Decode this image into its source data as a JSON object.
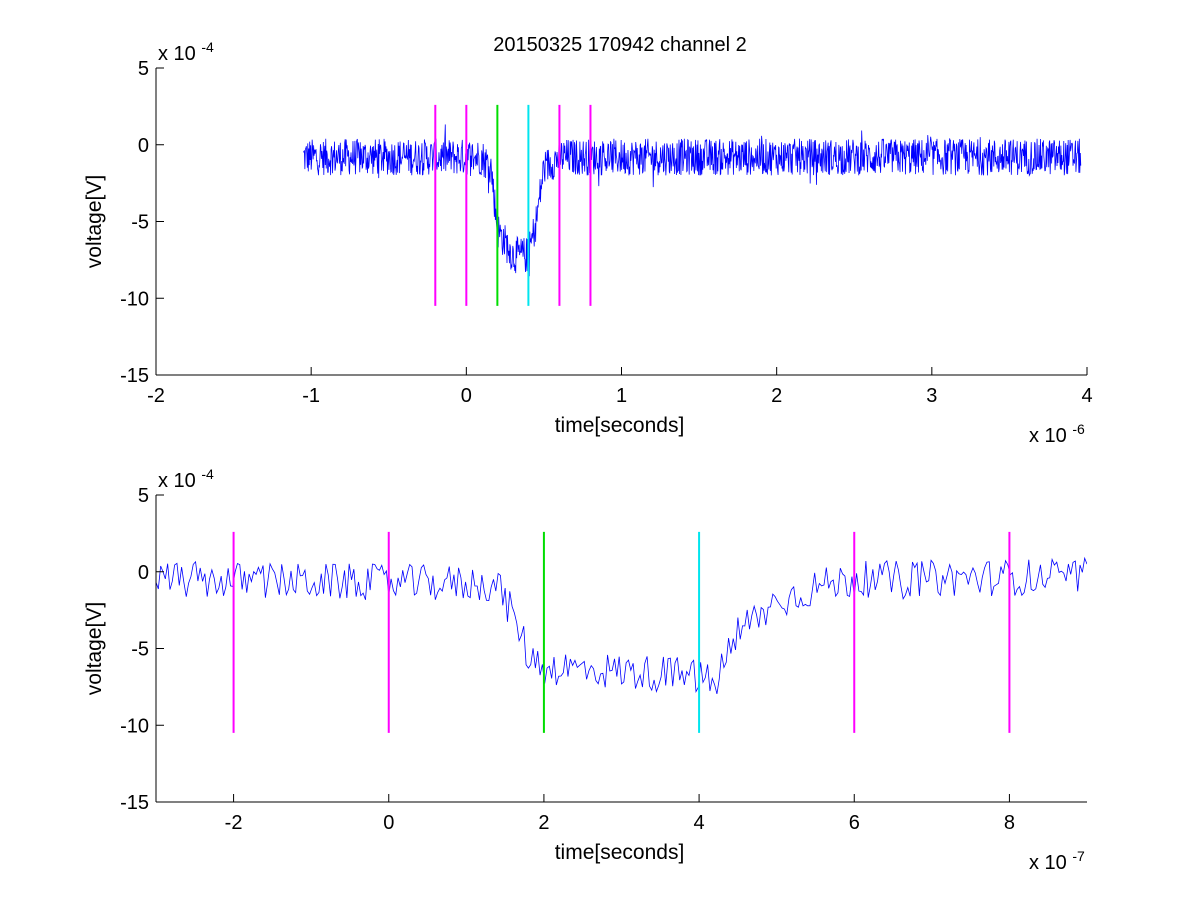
{
  "figure": {
    "title": "20150325 170942 channel 2"
  },
  "colors": {
    "signal": "#0000ff",
    "magenta_marker": "#ff00ff",
    "green_marker": "#00dd00",
    "cyan_marker": "#00e5ee",
    "axes": "#000000",
    "background": "#ffffff"
  },
  "chart_data": [
    {
      "type": "line",
      "title": "20150325 170942 channel 2",
      "xlabel": "time[seconds]",
      "ylabel": "voltage[V]",
      "x_exponent_label": "x 10",
      "x_exponent": "-6",
      "y_exponent_label": "x 10",
      "y_exponent": "-4",
      "xlim": [
        -2,
        4
      ],
      "ylim": [
        -15,
        5
      ],
      "x_unit_scale": "1e-6",
      "y_unit_scale": "1e-4",
      "xticks": [
        -2,
        -1,
        0,
        1,
        2,
        3,
        4
      ],
      "xtick_labels": [
        "-2",
        "-1",
        "0",
        "1",
        "2",
        "3",
        "4"
      ],
      "yticks": [
        5,
        0,
        -5,
        -10,
        -15
      ],
      "ytick_labels": [
        "5",
        "0",
        "-5",
        "-10",
        "-15"
      ],
      "grid": false,
      "legend": "none",
      "signal": {
        "x_start": -1.05,
        "x_end": 3.96,
        "description_points": [
          [
            -1.05,
            -0.8
          ],
          [
            -0.2,
            -0.8
          ],
          [
            0.1,
            -0.8
          ],
          [
            0.16,
            -1.5
          ],
          [
            0.2,
            -5.5
          ],
          [
            0.3,
            -7.2
          ],
          [
            0.4,
            -7.2
          ],
          [
            0.45,
            -5.0
          ],
          [
            0.5,
            -1.5
          ],
          [
            0.6,
            -0.8
          ],
          [
            3.96,
            -0.8
          ]
        ]
      },
      "markers": [
        {
          "x": -0.2,
          "color": "magenta",
          "y_range": [
            -10.5,
            2.6
          ]
        },
        {
          "x": 0.0,
          "color": "magenta",
          "y_range": [
            -10.5,
            2.6
          ]
        },
        {
          "x": 0.2,
          "color": "green",
          "y_range": [
            -10.5,
            2.6
          ]
        },
        {
          "x": 0.4,
          "color": "cyan",
          "y_range": [
            -10.5,
            2.6
          ]
        },
        {
          "x": 0.6,
          "color": "magenta",
          "y_range": [
            -10.5,
            2.6
          ]
        },
        {
          "x": 0.8,
          "color": "magenta",
          "y_range": [
            -10.5,
            2.6
          ]
        }
      ]
    },
    {
      "type": "line",
      "title": "",
      "xlabel": "time[seconds]",
      "ylabel": "voltage[V]",
      "x_exponent_label": "x 10",
      "x_exponent": "-7",
      "y_exponent_label": "x 10",
      "y_exponent": "-4",
      "xlim": [
        -3,
        9
      ],
      "ylim": [
        -15,
        5
      ],
      "x_unit_scale": "1e-7",
      "y_unit_scale": "1e-4",
      "xticks": [
        -2,
        0,
        2,
        4,
        6,
        8
      ],
      "xtick_labels": [
        "-2",
        "0",
        "2",
        "4",
        "6",
        "8"
      ],
      "yticks": [
        5,
        0,
        -5,
        -10,
        -15
      ],
      "ytick_labels": [
        "5",
        "0",
        "-5",
        "-10",
        "-15"
      ],
      "grid": false,
      "legend": "none",
      "signal": {
        "x_start": -3,
        "x_end": 9,
        "description_points": [
          [
            -3,
            -0.5
          ],
          [
            1.4,
            -0.8
          ],
          [
            1.5,
            -1.8
          ],
          [
            1.7,
            -4.0
          ],
          [
            1.8,
            -5.5
          ],
          [
            2.0,
            -6.2
          ],
          [
            4.0,
            -6.8
          ],
          [
            4.2,
            -7.5
          ],
          [
            4.3,
            -6.0
          ],
          [
            4.6,
            -3.5
          ],
          [
            5.0,
            -2.0
          ],
          [
            5.5,
            -1.0
          ],
          [
            6.0,
            -0.5
          ],
          [
            9,
            -0.3
          ]
        ]
      },
      "markers": [
        {
          "x": -2,
          "color": "magenta",
          "y_range": [
            -10.5,
            2.6
          ]
        },
        {
          "x": 0,
          "color": "magenta",
          "y_range": [
            -10.5,
            2.6
          ]
        },
        {
          "x": 2,
          "color": "green",
          "y_range": [
            -10.5,
            2.6
          ]
        },
        {
          "x": 4,
          "color": "cyan",
          "y_range": [
            -10.5,
            2.6
          ]
        },
        {
          "x": 6,
          "color": "magenta",
          "y_range": [
            -10.5,
            2.6
          ]
        },
        {
          "x": 8,
          "color": "magenta",
          "y_range": [
            -10.5,
            2.6
          ]
        }
      ]
    }
  ]
}
